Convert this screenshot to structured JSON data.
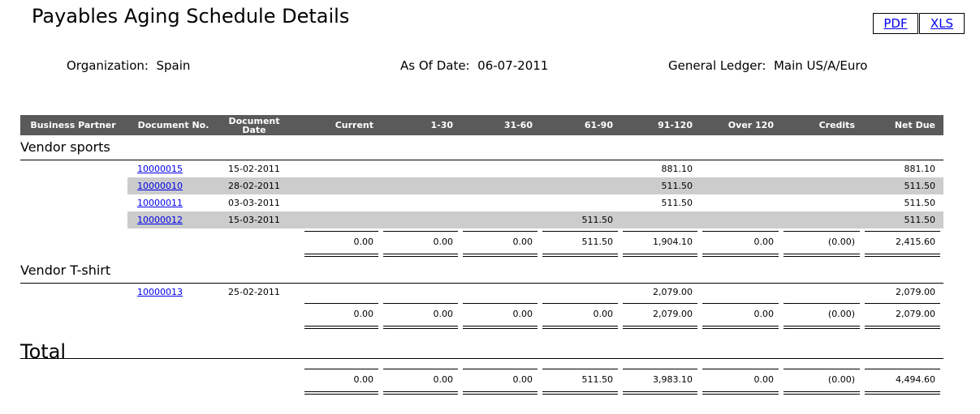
{
  "header": {
    "title": "Payables Aging Schedule Details",
    "buttons": [
      "PDF",
      "XLS"
    ]
  },
  "params": [
    {
      "label": "Organization:",
      "value": "Spain"
    },
    {
      "label": "As Of Date:",
      "value": "06-07-2011"
    },
    {
      "label": "General Ledger:",
      "value": "Main US/A/Euro"
    }
  ],
  "table": {
    "columns": [
      "Business Partner",
      "Document No.",
      "Document Date",
      "Current",
      "1-30",
      "31-60",
      "61-90",
      "91-120",
      "Over 120",
      "Credits",
      "Net Due"
    ],
    "groups": [
      {
        "name": "Vendor sports",
        "rows": [
          [
            "10000015",
            "15-02-2011",
            null,
            null,
            null,
            null,
            "881.10",
            null,
            null,
            "881.10"
          ],
          [
            "10000010",
            "28-02-2011",
            null,
            null,
            null,
            null,
            "511.50",
            null,
            null,
            "511.50"
          ],
          [
            "10000011",
            "03-03-2011",
            null,
            null,
            null,
            null,
            "511.50",
            null,
            null,
            "511.50"
          ],
          [
            "10000012",
            "15-03-2011",
            null,
            null,
            null,
            "511.50",
            null,
            null,
            null,
            "511.50"
          ]
        ],
        "totals": [
          "0.00",
          "0.00",
          "0.00",
          "511.50",
          "1,904.10",
          "0.00",
          "(0.00)",
          "2,415.60"
        ]
      },
      {
        "name": "Vendor T-shirt",
        "rows": [
          [
            "10000013",
            "25-02-2011",
            null,
            null,
            null,
            null,
            "2,079.00",
            null,
            null,
            "2,079.00"
          ]
        ],
        "totals": [
          "0.00",
          "0.00",
          "0.00",
          "0.00",
          "2,079.00",
          "0.00",
          "(0.00)",
          "2,079.00"
        ]
      }
    ],
    "total": {
      "label": "Total",
      "totals": [
        "0.00",
        "0.00",
        "0.00",
        "511.50",
        "3,983.10",
        "0.00",
        "(0.00)",
        "4,494.60"
      ]
    }
  }
}
